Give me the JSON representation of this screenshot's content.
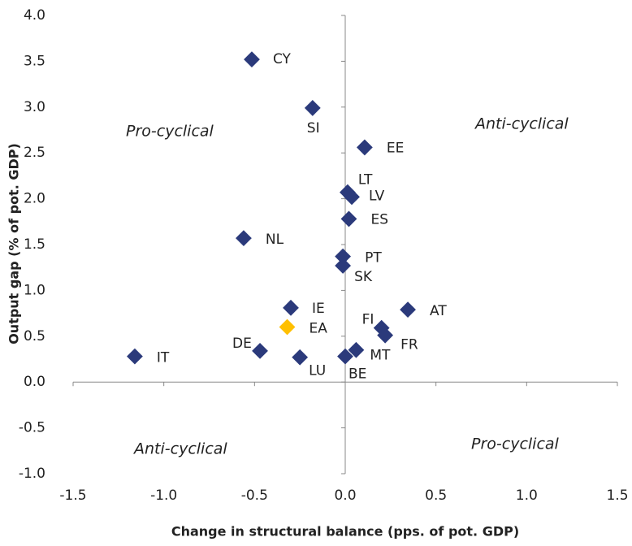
{
  "chart_data": {
    "type": "scatter",
    "xlabel": "Change in structural balance (pps. of pot. GDP)",
    "ylabel": "Output gap (% of pot. GDP)",
    "xlim": [
      -1.5,
      1.5
    ],
    "ylim": [
      -1.0,
      4.0
    ],
    "xticks": [
      -1.5,
      {
        "value": -1,
        "label": "-1.0"
      },
      -0.5,
      {
        "value": 0,
        "label": "0.0"
      },
      0.5,
      {
        "value": 1,
        "label": "1.0"
      },
      1.5
    ],
    "yticks": [
      {
        "value": -1,
        "label": "-1.0"
      },
      -0.5,
      {
        "value": 0,
        "label": "0.0"
      },
      0.5,
      {
        "value": 1,
        "label": "1.0"
      },
      1.5,
      {
        "value": 2,
        "label": "2.0"
      },
      2.5,
      {
        "value": 3,
        "label": "3.0"
      },
      3.5,
      {
        "value": 4,
        "label": "4.0"
      }
    ],
    "point_labels": [
      "CY",
      "SI",
      "EE",
      "LT",
      "LV",
      "ES",
      "NL",
      "PT",
      "SK",
      "IE",
      "AT",
      "EA",
      "FI",
      "FR",
      "DE",
      "MT",
      "BE",
      "LU",
      "IT"
    ],
    "x": [
      -0.515,
      -0.18,
      0.107,
      0.013,
      0.036,
      0.02,
      -0.56,
      -0.013,
      -0.013,
      -0.3,
      0.345,
      -0.32,
      0.2,
      0.22,
      -0.47,
      0.06,
      0.0,
      -0.25,
      -1.16
    ],
    "values": [
      3.52,
      2.99,
      2.56,
      2.07,
      2.02,
      1.78,
      1.57,
      1.37,
      1.27,
      0.81,
      0.79,
      0.6,
      0.59,
      0.51,
      0.34,
      0.35,
      0.28,
      0.27,
      0.28
    ],
    "colors": [
      "#2b3a7b",
      "#2b3a7b",
      "#2b3a7b",
      "#2b3a7b",
      "#2b3a7b",
      "#2b3a7b",
      "#2b3a7b",
      "#2b3a7b",
      "#2b3a7b",
      "#2b3a7b",
      "#2b3a7b",
      "#ffc000",
      "#2b3a7b",
      "#2b3a7b",
      "#2b3a7b",
      "#2b3a7b",
      "#2b3a7b",
      "#2b3a7b",
      "#2b3a7b"
    ],
    "annotations": [
      "Pro-cyclical",
      "Anti-cyclical",
      "Anti-cyclical",
      "Pro-cyclical"
    ]
  }
}
